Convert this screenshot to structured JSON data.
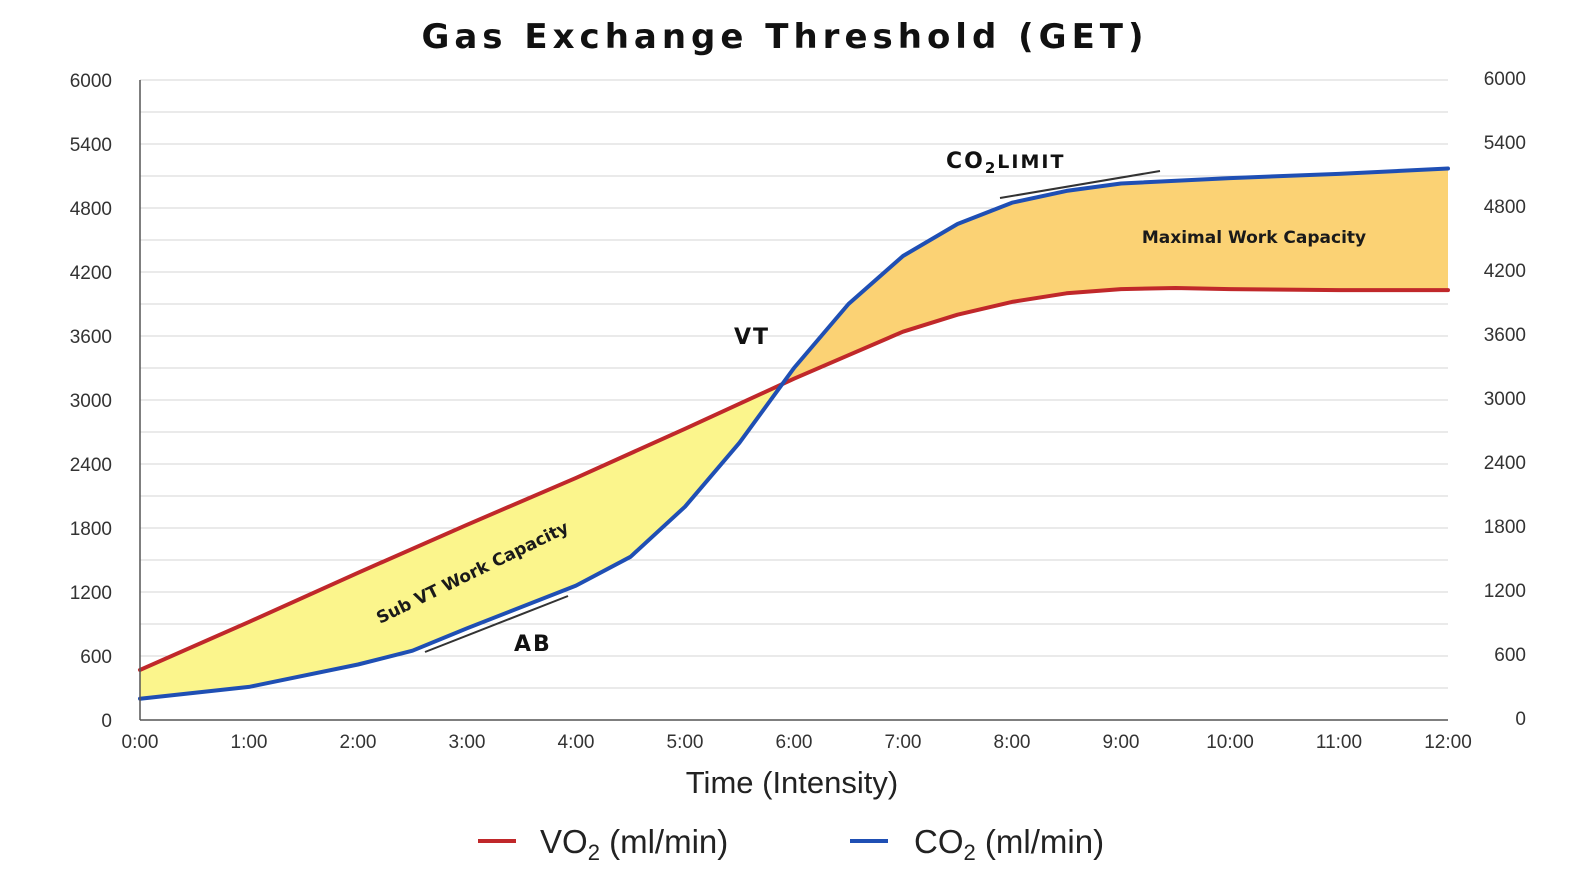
{
  "chart_data": {
    "type": "line",
    "title": "Gas Exchange Threshold (GET)",
    "xlabel": "Time (Intensity)",
    "ylabel": "",
    "x_ticks": [
      "0:00",
      "1:00",
      "2:00",
      "3:00",
      "4:00",
      "5:00",
      "6:00",
      "7:00",
      "8:00",
      "9:00",
      "10:00",
      "11:00",
      "12:00"
    ],
    "y_ticks": [
      "0",
      "600",
      "1200",
      "1800",
      "2400",
      "3000",
      "3600",
      "4200",
      "4800",
      "5400",
      "6000"
    ],
    "y2_ticks": [
      "0",
      "600",
      "1200",
      "1800",
      "2400",
      "3000",
      "3600",
      "4200",
      "4800",
      "5400",
      "6000"
    ],
    "xlim": [
      0,
      12
    ],
    "ylim": [
      0,
      6000
    ],
    "grid": true,
    "legend_position": "bottom",
    "series": [
      {
        "name": "VO",
        "name_sub": "2",
        "name_suffix": " (ml/min)",
        "color": "#c0282a",
        "x": [
          0,
          1,
          2,
          3,
          4,
          5,
          6,
          6.5,
          7,
          7.5,
          8,
          8.5,
          9,
          9.5,
          10,
          11,
          12
        ],
        "y": [
          470,
          920,
          1380,
          1830,
          2270,
          2730,
          3200,
          3420,
          3640,
          3800,
          3920,
          4000,
          4040,
          4050,
          4040,
          4030,
          4030
        ]
      },
      {
        "name": "CO",
        "name_sub": "2",
        "name_suffix": " (ml/min)",
        "color": "#1f4fb4",
        "x": [
          0,
          1,
          2,
          2.5,
          3,
          4,
          4.5,
          5,
          5.5,
          6,
          6.5,
          7,
          7.5,
          8,
          8.5,
          9,
          10,
          11,
          12
        ],
        "y": [
          200,
          310,
          520,
          650,
          860,
          1260,
          1530,
          2000,
          2600,
          3300,
          3900,
          4350,
          4650,
          4850,
          4960,
          5030,
          5080,
          5120,
          5170
        ]
      }
    ],
    "annotations": {
      "vt": "VT",
      "ab": "AB",
      "co2_limit_main": "CO",
      "co2_limit_sub": "2",
      "co2_limit_suffix": "LIMIT",
      "sub_vt_region": "Sub VT Work Capacity",
      "max_region": "Maximal Work Capacity"
    },
    "colors": {
      "sub_vt_fill": "#fbf58c",
      "max_fill": "#fbd274",
      "grid": "#d4d4d4",
      "axis": "#555555"
    }
  }
}
